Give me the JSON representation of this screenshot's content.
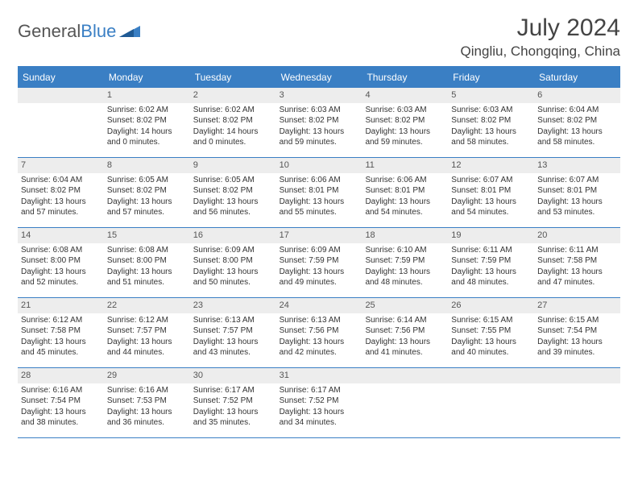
{
  "logo": {
    "prefix": "General",
    "suffix": "Blue"
  },
  "header": {
    "title": "July 2024",
    "location": "Qingliu, Chongqing, China"
  },
  "colors": {
    "accent": "#3a7fc4",
    "dayNumBg": "#ededed",
    "text": "#333333"
  },
  "weekdays": [
    "Sunday",
    "Monday",
    "Tuesday",
    "Wednesday",
    "Thursday",
    "Friday",
    "Saturday"
  ],
  "weeks": [
    [
      {
        "num": "",
        "lines": []
      },
      {
        "num": "1",
        "lines": [
          "Sunrise: 6:02 AM",
          "Sunset: 8:02 PM",
          "Daylight: 14 hours",
          "and 0 minutes."
        ]
      },
      {
        "num": "2",
        "lines": [
          "Sunrise: 6:02 AM",
          "Sunset: 8:02 PM",
          "Daylight: 14 hours",
          "and 0 minutes."
        ]
      },
      {
        "num": "3",
        "lines": [
          "Sunrise: 6:03 AM",
          "Sunset: 8:02 PM",
          "Daylight: 13 hours",
          "and 59 minutes."
        ]
      },
      {
        "num": "4",
        "lines": [
          "Sunrise: 6:03 AM",
          "Sunset: 8:02 PM",
          "Daylight: 13 hours",
          "and 59 minutes."
        ]
      },
      {
        "num": "5",
        "lines": [
          "Sunrise: 6:03 AM",
          "Sunset: 8:02 PM",
          "Daylight: 13 hours",
          "and 58 minutes."
        ]
      },
      {
        "num": "6",
        "lines": [
          "Sunrise: 6:04 AM",
          "Sunset: 8:02 PM",
          "Daylight: 13 hours",
          "and 58 minutes."
        ]
      }
    ],
    [
      {
        "num": "7",
        "lines": [
          "Sunrise: 6:04 AM",
          "Sunset: 8:02 PM",
          "Daylight: 13 hours",
          "and 57 minutes."
        ]
      },
      {
        "num": "8",
        "lines": [
          "Sunrise: 6:05 AM",
          "Sunset: 8:02 PM",
          "Daylight: 13 hours",
          "and 57 minutes."
        ]
      },
      {
        "num": "9",
        "lines": [
          "Sunrise: 6:05 AM",
          "Sunset: 8:02 PM",
          "Daylight: 13 hours",
          "and 56 minutes."
        ]
      },
      {
        "num": "10",
        "lines": [
          "Sunrise: 6:06 AM",
          "Sunset: 8:01 PM",
          "Daylight: 13 hours",
          "and 55 minutes."
        ]
      },
      {
        "num": "11",
        "lines": [
          "Sunrise: 6:06 AM",
          "Sunset: 8:01 PM",
          "Daylight: 13 hours",
          "and 54 minutes."
        ]
      },
      {
        "num": "12",
        "lines": [
          "Sunrise: 6:07 AM",
          "Sunset: 8:01 PM",
          "Daylight: 13 hours",
          "and 54 minutes."
        ]
      },
      {
        "num": "13",
        "lines": [
          "Sunrise: 6:07 AM",
          "Sunset: 8:01 PM",
          "Daylight: 13 hours",
          "and 53 minutes."
        ]
      }
    ],
    [
      {
        "num": "14",
        "lines": [
          "Sunrise: 6:08 AM",
          "Sunset: 8:00 PM",
          "Daylight: 13 hours",
          "and 52 minutes."
        ]
      },
      {
        "num": "15",
        "lines": [
          "Sunrise: 6:08 AM",
          "Sunset: 8:00 PM",
          "Daylight: 13 hours",
          "and 51 minutes."
        ]
      },
      {
        "num": "16",
        "lines": [
          "Sunrise: 6:09 AM",
          "Sunset: 8:00 PM",
          "Daylight: 13 hours",
          "and 50 minutes."
        ]
      },
      {
        "num": "17",
        "lines": [
          "Sunrise: 6:09 AM",
          "Sunset: 7:59 PM",
          "Daylight: 13 hours",
          "and 49 minutes."
        ]
      },
      {
        "num": "18",
        "lines": [
          "Sunrise: 6:10 AM",
          "Sunset: 7:59 PM",
          "Daylight: 13 hours",
          "and 48 minutes."
        ]
      },
      {
        "num": "19",
        "lines": [
          "Sunrise: 6:11 AM",
          "Sunset: 7:59 PM",
          "Daylight: 13 hours",
          "and 48 minutes."
        ]
      },
      {
        "num": "20",
        "lines": [
          "Sunrise: 6:11 AM",
          "Sunset: 7:58 PM",
          "Daylight: 13 hours",
          "and 47 minutes."
        ]
      }
    ],
    [
      {
        "num": "21",
        "lines": [
          "Sunrise: 6:12 AM",
          "Sunset: 7:58 PM",
          "Daylight: 13 hours",
          "and 45 minutes."
        ]
      },
      {
        "num": "22",
        "lines": [
          "Sunrise: 6:12 AM",
          "Sunset: 7:57 PM",
          "Daylight: 13 hours",
          "and 44 minutes."
        ]
      },
      {
        "num": "23",
        "lines": [
          "Sunrise: 6:13 AM",
          "Sunset: 7:57 PM",
          "Daylight: 13 hours",
          "and 43 minutes."
        ]
      },
      {
        "num": "24",
        "lines": [
          "Sunrise: 6:13 AM",
          "Sunset: 7:56 PM",
          "Daylight: 13 hours",
          "and 42 minutes."
        ]
      },
      {
        "num": "25",
        "lines": [
          "Sunrise: 6:14 AM",
          "Sunset: 7:56 PM",
          "Daylight: 13 hours",
          "and 41 minutes."
        ]
      },
      {
        "num": "26",
        "lines": [
          "Sunrise: 6:15 AM",
          "Sunset: 7:55 PM",
          "Daylight: 13 hours",
          "and 40 minutes."
        ]
      },
      {
        "num": "27",
        "lines": [
          "Sunrise: 6:15 AM",
          "Sunset: 7:54 PM",
          "Daylight: 13 hours",
          "and 39 minutes."
        ]
      }
    ],
    [
      {
        "num": "28",
        "lines": [
          "Sunrise: 6:16 AM",
          "Sunset: 7:54 PM",
          "Daylight: 13 hours",
          "and 38 minutes."
        ]
      },
      {
        "num": "29",
        "lines": [
          "Sunrise: 6:16 AM",
          "Sunset: 7:53 PM",
          "Daylight: 13 hours",
          "and 36 minutes."
        ]
      },
      {
        "num": "30",
        "lines": [
          "Sunrise: 6:17 AM",
          "Sunset: 7:52 PM",
          "Daylight: 13 hours",
          "and 35 minutes."
        ]
      },
      {
        "num": "31",
        "lines": [
          "Sunrise: 6:17 AM",
          "Sunset: 7:52 PM",
          "Daylight: 13 hours",
          "and 34 minutes."
        ]
      },
      {
        "num": "",
        "lines": []
      },
      {
        "num": "",
        "lines": []
      },
      {
        "num": "",
        "lines": []
      }
    ]
  ]
}
